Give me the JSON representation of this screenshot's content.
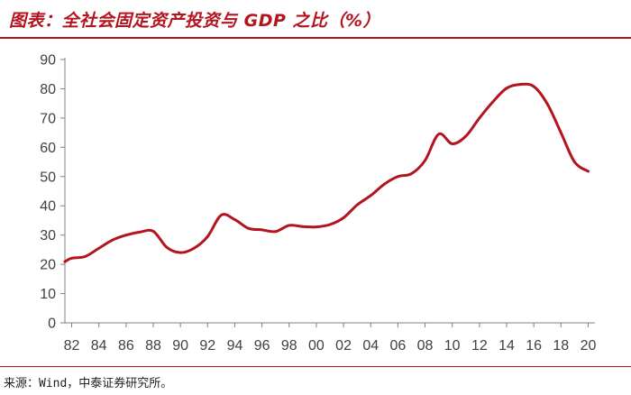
{
  "header": {
    "title": "图表：全社会固定资产投资与 GDP 之比（%）"
  },
  "footer": {
    "source": "来源：Wind，中泰证券研究所。"
  },
  "colors": {
    "accent": "#b4141e",
    "line": "#b4141e",
    "axis": "#808080",
    "text": "#404040"
  },
  "chart_data": {
    "type": "line",
    "title": "",
    "xlabel": "",
    "ylabel": "",
    "ylim": [
      0,
      90
    ],
    "yticks": [
      0,
      10,
      20,
      30,
      40,
      50,
      60,
      70,
      80,
      90
    ],
    "xlim": [
      1981.5,
      2020.5
    ],
    "xtick_values": [
      1982,
      1984,
      1986,
      1988,
      1990,
      1992,
      1994,
      1996,
      1998,
      2000,
      2002,
      2004,
      2006,
      2008,
      2010,
      2012,
      2014,
      2016,
      2018,
      2020
    ],
    "xtick_labels": [
      "82",
      "84",
      "86",
      "88",
      "90",
      "92",
      "94",
      "96",
      "98",
      "00",
      "02",
      "04",
      "06",
      "08",
      "10",
      "12",
      "14",
      "16",
      "18",
      "20"
    ],
    "grid": false,
    "legend": "none",
    "series": [
      {
        "x": [
          1981.5,
          1982,
          1983,
          1984,
          1985,
          1986,
          1987,
          1988,
          1989,
          1990,
          1991,
          1992,
          1993,
          1994,
          1995,
          1996,
          1997,
          1998,
          1999,
          2000,
          2001,
          2002,
          2003,
          2004,
          2005,
          2006,
          2007,
          2008,
          2009,
          2010,
          2011,
          2012,
          2013,
          2014,
          2015,
          2016,
          2017,
          2018,
          2019,
          2020
        ],
        "values": [
          20.9,
          22.1,
          22.7,
          25.5,
          28.3,
          30.0,
          31.0,
          31.3,
          25.8,
          24.0,
          25.5,
          29.5,
          36.8,
          35.3,
          32.3,
          31.8,
          31.2,
          33.3,
          32.9,
          32.8,
          33.6,
          35.9,
          40.3,
          43.5,
          47.4,
          50.0,
          51.0,
          55.5,
          64.5,
          61.2,
          63.8,
          70.0,
          75.6,
          80.2,
          81.5,
          80.8,
          74.8,
          65.0,
          55.0,
          51.8
        ]
      }
    ]
  }
}
